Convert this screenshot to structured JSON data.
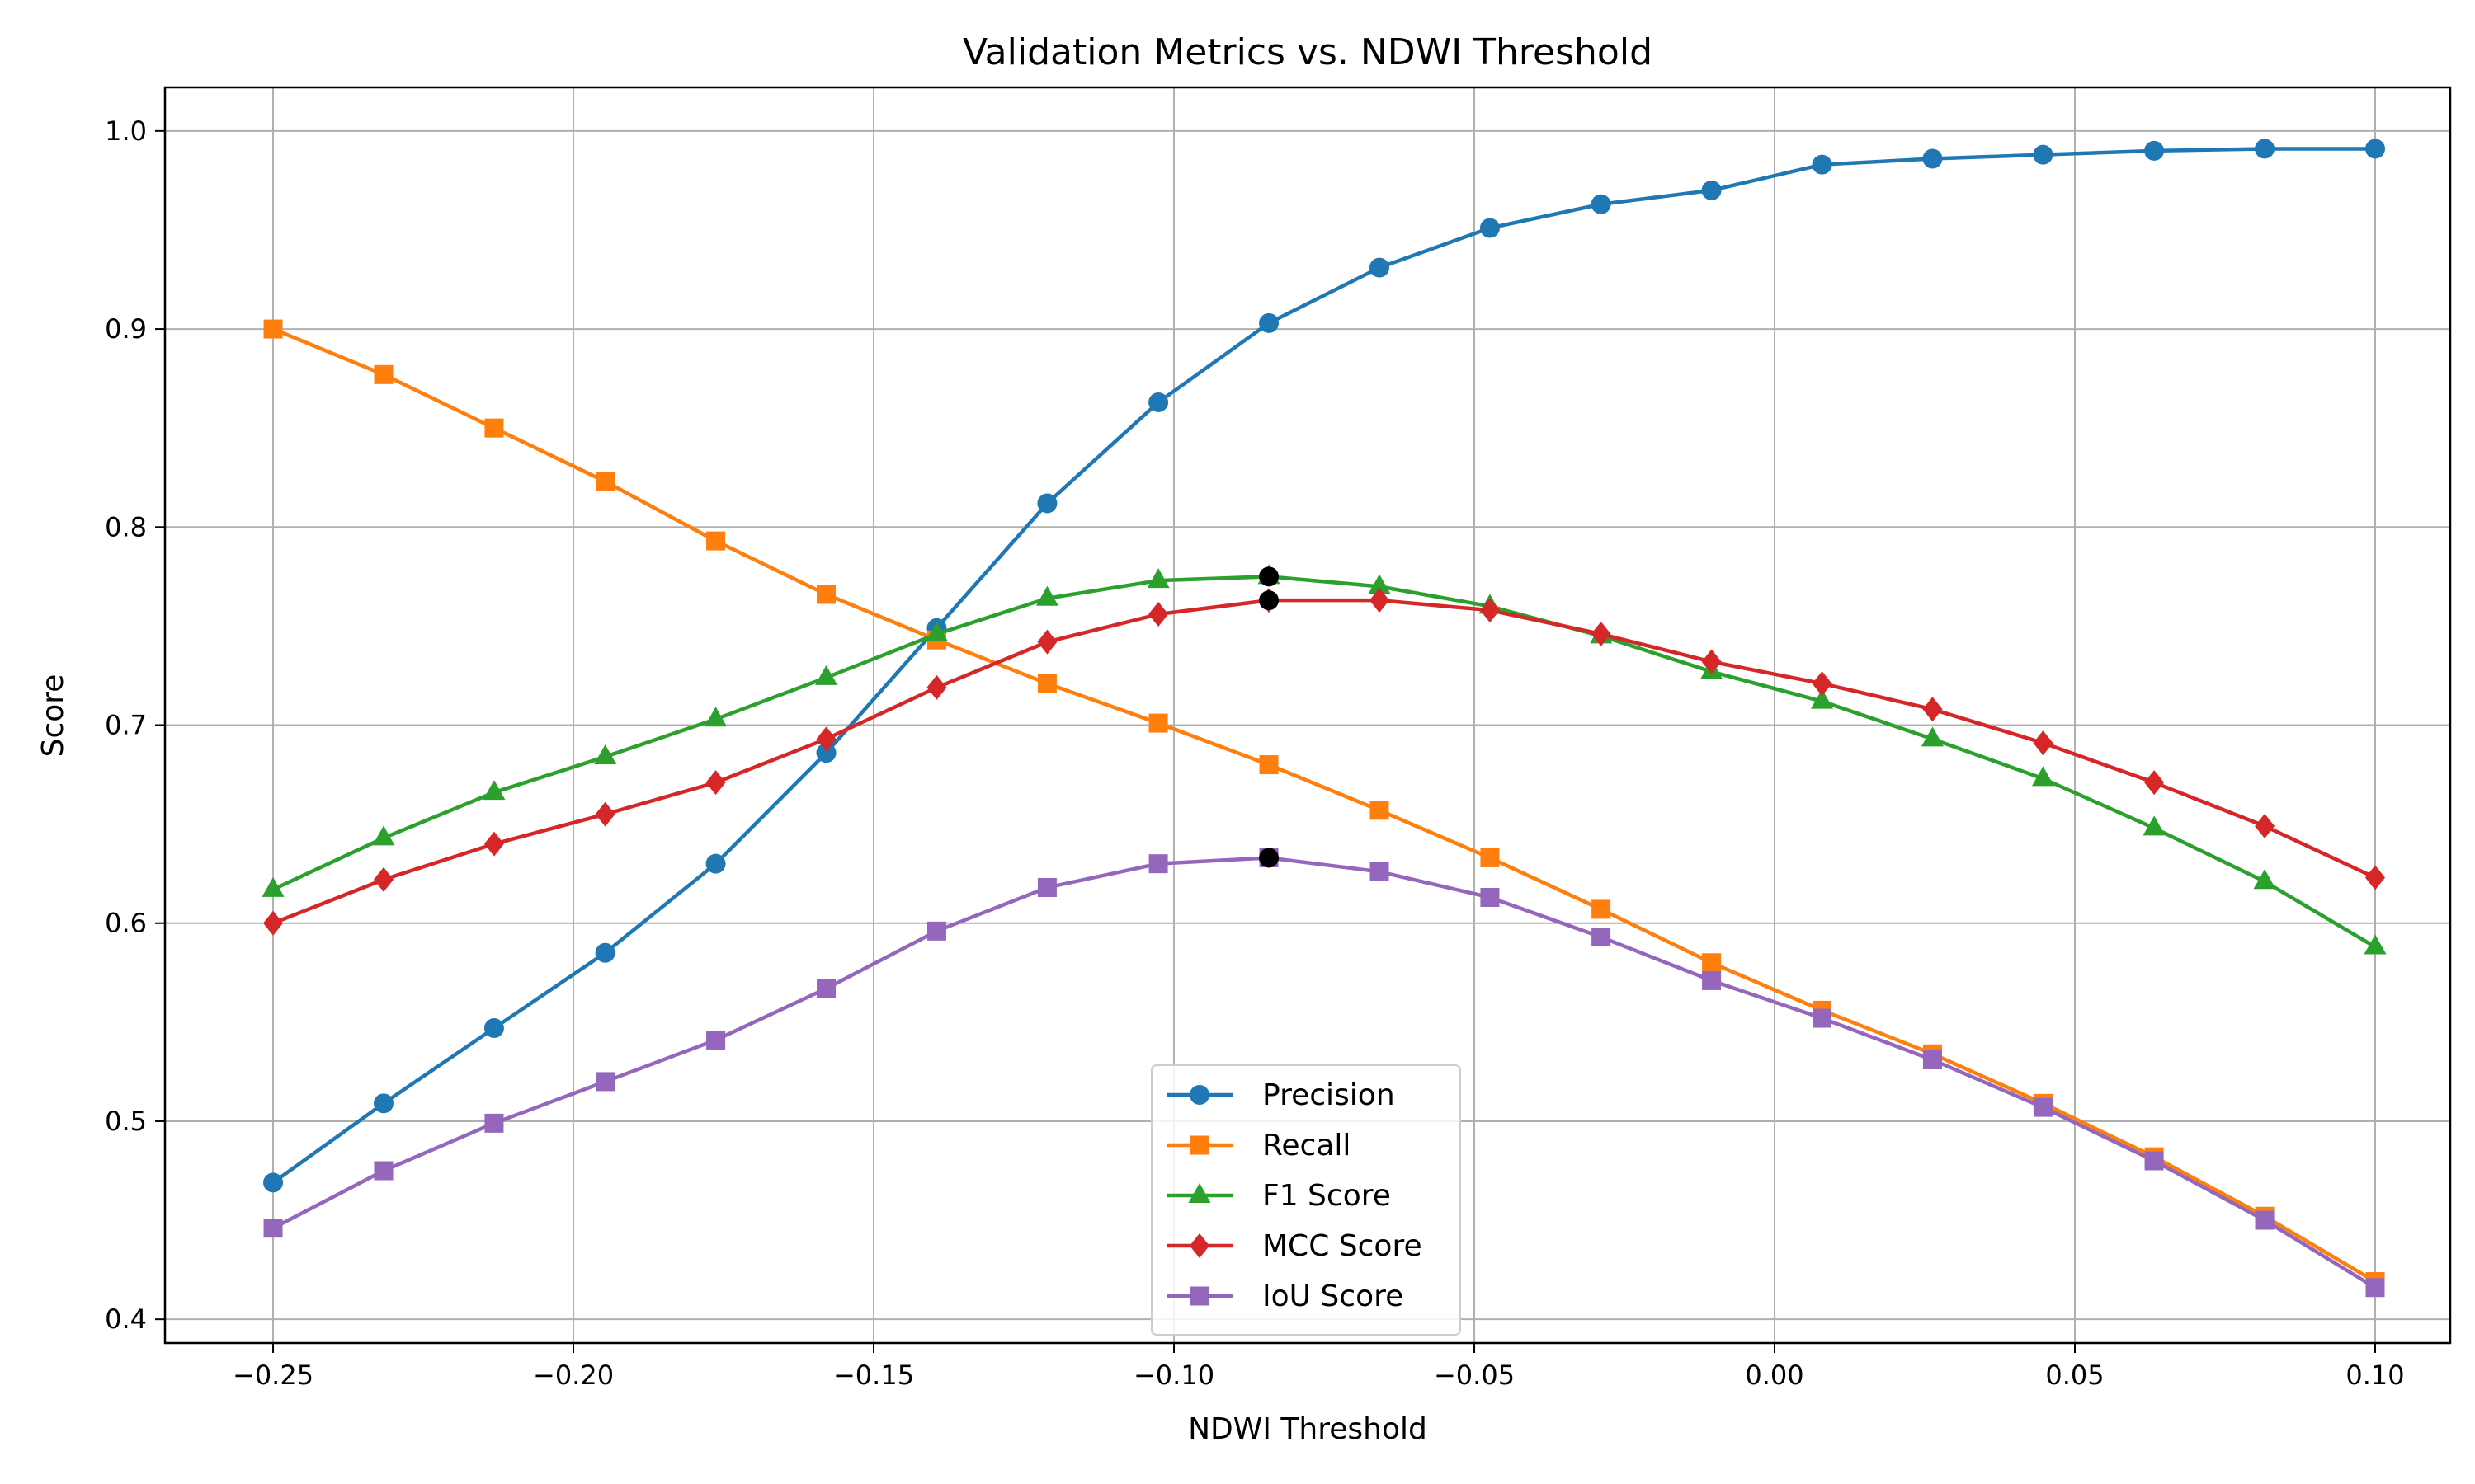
{
  "chart_data": {
    "type": "line",
    "title": "Validation Metrics vs. NDWI Threshold",
    "xlabel": "NDWI Threshold",
    "ylabel": "Score",
    "xlim": [
      -0.268,
      0.1125
    ],
    "ylim": [
      0.388,
      1.022
    ],
    "xticks": [
      -0.25,
      -0.2,
      -0.15,
      -0.1,
      -0.05,
      0.0,
      0.05,
      0.1
    ],
    "xtick_labels": [
      "−0.25",
      "−0.20",
      "−0.15",
      "−0.10",
      "−0.05",
      "0.00",
      "0.05",
      "0.10"
    ],
    "yticks": [
      0.4,
      0.5,
      0.6,
      0.7,
      0.8,
      0.9,
      1.0
    ],
    "ytick_labels": [
      "0.4",
      "0.5",
      "0.6",
      "0.7",
      "0.8",
      "0.9",
      "1.0"
    ],
    "grid": true,
    "legend_position": "lower-center",
    "x": [
      -0.25,
      -0.2316,
      -0.2132,
      -0.1947,
      -0.1763,
      -0.1579,
      -0.1395,
      -0.1211,
      -0.1026,
      -0.0842,
      -0.0658,
      -0.0474,
      -0.0289,
      -0.0105,
      0.0079,
      0.0263,
      0.0447,
      0.0632,
      0.0816,
      0.1
    ],
    "series": [
      {
        "name": "Precision",
        "color": "#1f77b4",
        "marker": "circle",
        "values": [
          0.469,
          0.509,
          0.547,
          0.585,
          0.63,
          0.686,
          0.749,
          0.812,
          0.863,
          0.903,
          0.931,
          0.951,
          0.963,
          0.97,
          0.983,
          0.986,
          0.988,
          0.99,
          0.991,
          0.991
        ]
      },
      {
        "name": "Recall",
        "color": "#ff7f0e",
        "marker": "square",
        "values": [
          0.9,
          0.877,
          0.85,
          0.823,
          0.793,
          0.766,
          0.743,
          0.721,
          0.701,
          0.68,
          0.657,
          0.633,
          0.607,
          0.58,
          0.556,
          0.534,
          0.509,
          0.482,
          0.452,
          0.419
        ]
      },
      {
        "name": "F1 Score",
        "color": "#2ca02c",
        "marker": "triangle",
        "values": [
          0.617,
          0.643,
          0.666,
          0.684,
          0.703,
          0.724,
          0.746,
          0.764,
          0.773,
          0.775,
          0.77,
          0.76,
          0.745,
          0.727,
          0.712,
          0.693,
          0.673,
          0.648,
          0.621,
          0.588
        ]
      },
      {
        "name": "MCC Score",
        "color": "#d62728",
        "marker": "diamond",
        "values": [
          0.6,
          0.622,
          0.64,
          0.655,
          0.671,
          0.693,
          0.719,
          0.742,
          0.756,
          0.763,
          0.763,
          0.758,
          0.746,
          0.732,
          0.721,
          0.708,
          0.691,
          0.671,
          0.649,
          0.623
        ]
      },
      {
        "name": "IoU Score",
        "color": "#9467bd",
        "marker": "square",
        "values": [
          0.446,
          0.475,
          0.499,
          0.52,
          0.541,
          0.567,
          0.596,
          0.618,
          0.63,
          0.633,
          0.626,
          0.613,
          0.593,
          0.571,
          0.552,
          0.531,
          0.507,
          0.48,
          0.45,
          0.416
        ]
      }
    ],
    "best_points": {
      "color": "#000000",
      "x": -0.0842,
      "values": [
        0.775,
        0.763,
        0.633
      ]
    }
  }
}
